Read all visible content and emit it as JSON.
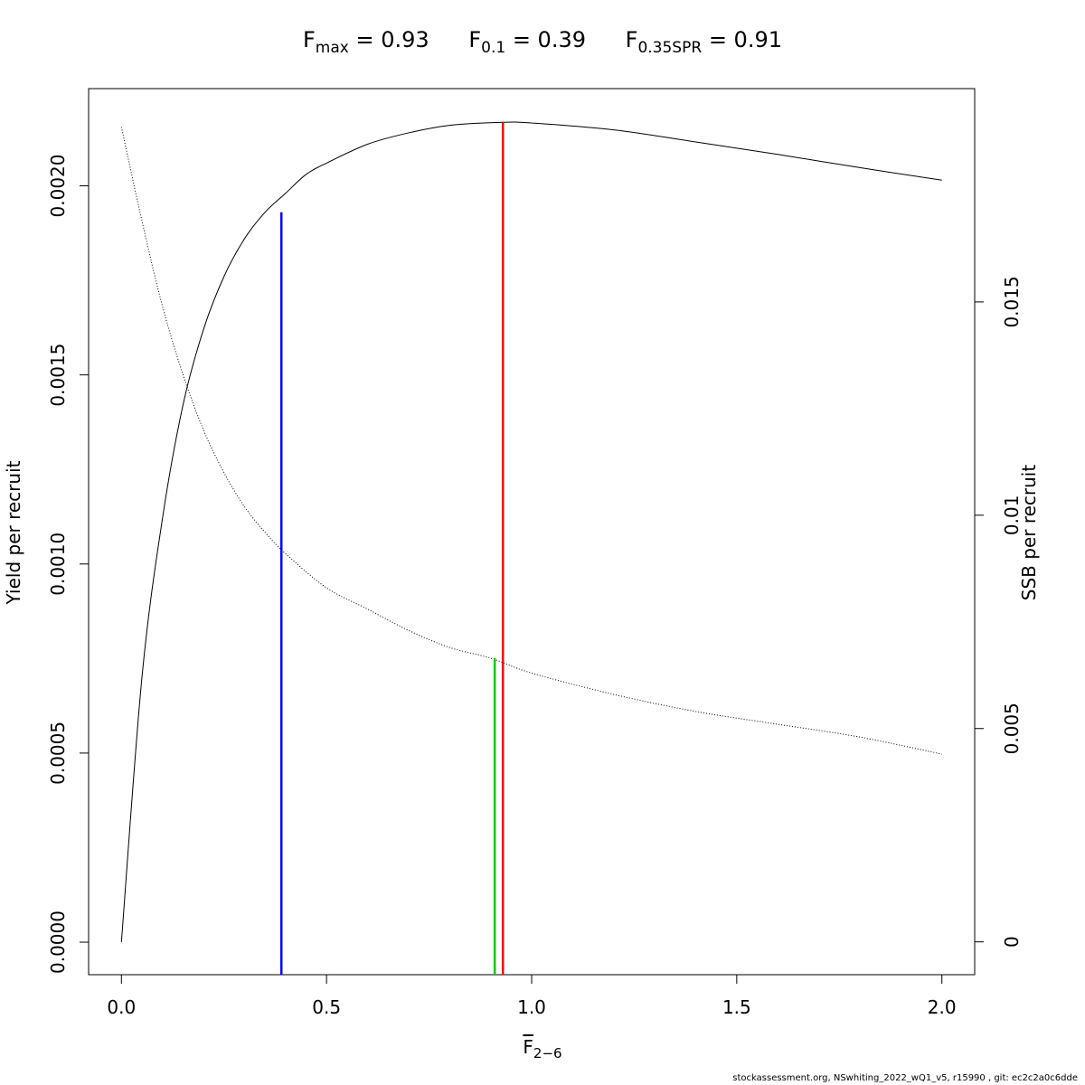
{
  "title": {
    "fmax_symbol": "F",
    "fmax_sub": "max",
    "fmax_value": "= 0.93",
    "f01_symbol": "F",
    "f01_sub": "0.1",
    "f01_value": "= 0.39",
    "fspr_symbol": "F",
    "fspr_sub": "0.35SPR",
    "fspr_value": "= 0.91"
  },
  "caption": "stockassessment.org, NSwhiting_2022_wQ1_v5, r15990 , git: ec2c2a0c6dde",
  "chart_data": {
    "type": "line",
    "xlabel": {
      "symbol": "F",
      "sub": "2−6"
    },
    "ylabel_left": "Yield per recruit",
    "ylabel_right": "SSB per recruit",
    "xlim": [
      -0.08,
      2.08
    ],
    "ylim_left": [
      -8.6e-05,
      0.002257
    ],
    "ylim_right": [
      -0.00077,
      0.02
    ],
    "x_ticks": [
      0,
      0.5,
      1,
      1.5,
      2
    ],
    "x_tick_labels": [
      "0.0",
      "0.5",
      "1.0",
      "1.5",
      "2.0"
    ],
    "y_left_ticks": [
      0,
      0.0005,
      0.001,
      0.0015,
      0.002
    ],
    "y_left_tick_labels": [
      "0.0000",
      "0.0005",
      "0.0010",
      "0.0015",
      "0.0020"
    ],
    "y_right_ticks": [
      0,
      0.005,
      0.01,
      0.015
    ],
    "y_right_tick_labels": [
      "0",
      "0.005",
      "0.01",
      "0.015"
    ],
    "grid": false,
    "series": [
      {
        "axis": "left",
        "style": "solid",
        "color": "#000000",
        "x": [
          0,
          0.05,
          0.1,
          0.15,
          0.2,
          0.25,
          0.3,
          0.35,
          0.4,
          0.45,
          0.5,
          0.6,
          0.7,
          0.8,
          0.93,
          1.0,
          1.2,
          1.4,
          1.6,
          1.8,
          2.0
        ],
        "y": [
          0,
          0.0007,
          0.00112,
          0.00142,
          0.00162,
          0.00176,
          0.00186,
          0.00193,
          0.00198,
          0.00203,
          0.00206,
          0.00211,
          0.00214,
          0.00216,
          0.002168,
          0.002166,
          0.002148,
          0.002116,
          0.002083,
          0.002048,
          0.002015
        ]
      },
      {
        "axis": "right",
        "style": "dotted",
        "color": "#000000",
        "x": [
          0,
          0.05,
          0.1,
          0.15,
          0.2,
          0.25,
          0.3,
          0.35,
          0.4,
          0.5,
          0.6,
          0.7,
          0.8,
          0.9,
          1.0,
          1.2,
          1.4,
          1.6,
          1.8,
          2.0
        ],
        "y": [
          0.0191,
          0.0169,
          0.0149,
          0.0133,
          0.012,
          0.011,
          0.0102,
          0.0096,
          0.0091,
          0.0083,
          0.0078,
          0.0073,
          0.0069,
          0.00665,
          0.0063,
          0.0058,
          0.0054,
          0.0051,
          0.0048,
          0.0044
        ]
      }
    ],
    "reference_lines": [
      {
        "name": "F0.1",
        "x": 0.39,
        "y_top": 0.00193,
        "axis": "left",
        "color": "#0000ff"
      },
      {
        "name": "Fmax",
        "x": 0.93,
        "y_top": 0.002168,
        "axis": "left",
        "color": "#ff0000"
      },
      {
        "name": "F0.35SPR",
        "x": 0.91,
        "y_top": 0.00665,
        "axis": "right",
        "color": "#00cc00"
      }
    ]
  }
}
